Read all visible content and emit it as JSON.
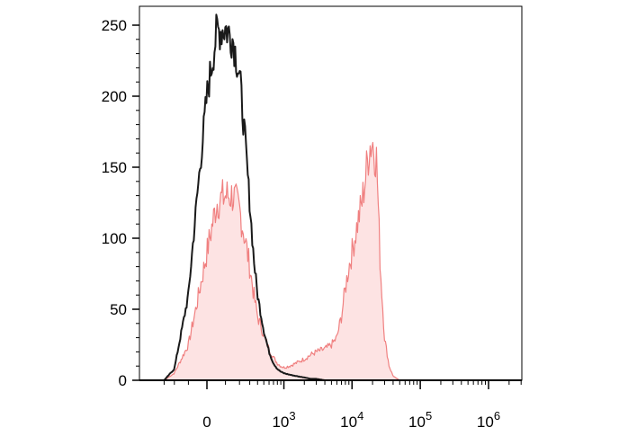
{
  "chart_data": {
    "type": "area",
    "title": "",
    "xlabel": "",
    "ylabel": "",
    "ylim": [
      0,
      260
    ],
    "xscale": "biexponential",
    "grid": false,
    "legend": "none",
    "y_ticks": [
      {
        "value": 0,
        "label": "0"
      },
      {
        "value": 50,
        "label": "50"
      },
      {
        "value": 100,
        "label": "100"
      },
      {
        "value": 150,
        "label": "150"
      },
      {
        "value": 200,
        "label": "200"
      },
      {
        "value": 250,
        "label": "250"
      }
    ],
    "x_ticks": [
      {
        "value": 0,
        "base": "0",
        "exp": ""
      },
      {
        "value": 1000,
        "base": "10",
        "exp": "3"
      },
      {
        "value": 10000,
        "base": "10",
        "exp": "4"
      },
      {
        "value": 100000,
        "base": "10",
        "exp": "5"
      },
      {
        "value": 1000000,
        "base": "10",
        "exp": "6"
      }
    ],
    "series": [
      {
        "style": "filled",
        "color": "#f08080",
        "fill": "#fde3e3",
        "x": [
          -300,
          -200,
          -100,
          -50,
          0,
          50,
          100,
          150,
          200,
          250,
          300,
          350,
          400,
          500,
          600,
          700,
          800,
          900,
          1000,
          1200,
          1500,
          2000,
          2500,
          3000,
          4000,
          5000,
          6000,
          7000,
          8000,
          9000,
          10000,
          12000,
          14000,
          16000,
          18000,
          20000,
          23000,
          26000,
          30000,
          35000,
          40000,
          50000,
          70000,
          100000,
          300000,
          1000000,
          3000000
        ],
        "values": [
          0,
          5,
          25,
          55,
          90,
          125,
          130,
          130,
          120,
          100,
          80,
          60,
          45,
          32,
          22,
          16,
          12,
          10,
          9,
          10,
          12,
          15,
          18,
          20,
          22,
          25,
          30,
          45,
          65,
          80,
          90,
          110,
          125,
          145,
          165,
          168,
          155,
          80,
          30,
          10,
          3,
          0,
          0,
          0,
          0,
          0,
          0
        ]
      },
      {
        "style": "line",
        "color": "#1a1a1a",
        "x": [
          -300,
          -200,
          -100,
          -50,
          0,
          50,
          100,
          150,
          200,
          250,
          300,
          350,
          400,
          500,
          600,
          700,
          800,
          900,
          1000,
          1200,
          1500,
          2000,
          2500,
          3000,
          4000,
          5000,
          10000,
          100000,
          1000000,
          3000000
        ],
        "values": [
          0,
          8,
          60,
          130,
          200,
          245,
          248,
          240,
          215,
          170,
          125,
          85,
          60,
          35,
          20,
          12,
          8,
          6,
          5,
          4,
          3,
          2,
          1,
          1,
          0,
          0,
          0,
          0,
          0,
          0
        ]
      }
    ]
  }
}
